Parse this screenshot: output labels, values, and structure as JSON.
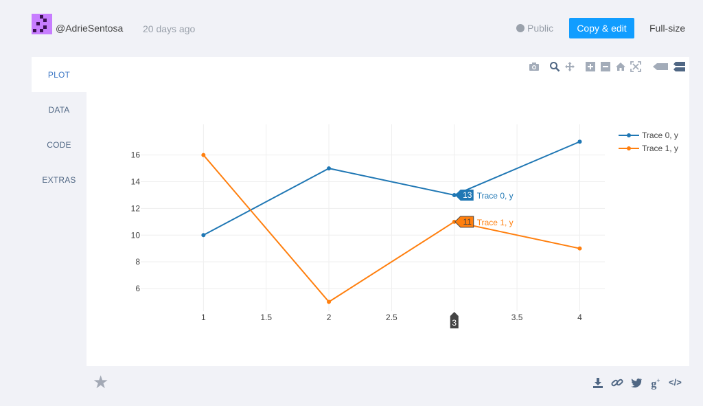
{
  "header": {
    "username": "@AdrieSentosa",
    "time_ago": "20 days ago",
    "visibility": "Public",
    "copy_edit_label": "Copy & edit",
    "fullsize_label": "Full-size"
  },
  "tabs": [
    {
      "label": "PLOT",
      "active": true
    },
    {
      "label": "DATA",
      "active": false
    },
    {
      "label": "CODE",
      "active": false
    },
    {
      "label": "EXTRAS",
      "active": false
    }
  ],
  "modebar": [
    "camera-icon",
    "zoom-icon",
    "pan-icon",
    "zoom-in-icon",
    "zoom-out-icon",
    "home-icon",
    "autoscale-icon",
    "hover-closest-icon",
    "hover-compare-icon"
  ],
  "footer_icons": [
    "star-icon",
    "download-icon",
    "link-icon",
    "twitter-icon",
    "google-plus-icon",
    "embed-icon"
  ],
  "chart_data": {
    "type": "line",
    "x": [
      1,
      2,
      3,
      4
    ],
    "xlim": [
      0.5,
      4.2
    ],
    "ylim": [
      4.3,
      18.3
    ],
    "xticks": [
      "1",
      "1.5",
      "2",
      "2.5",
      "3",
      "3.5",
      "4"
    ],
    "yticks": [
      "6",
      "8",
      "10",
      "12",
      "14",
      "16"
    ],
    "grid": true,
    "legend_position": "top-right",
    "series": [
      {
        "name": "Trace 0, y",
        "values": [
          10,
          15,
          13,
          17
        ],
        "color": "#1f77b4"
      },
      {
        "name": "Trace 1, y",
        "values": [
          16,
          5,
          11,
          9
        ],
        "color": "#ff7f0e"
      }
    ],
    "hover": {
      "x_label": "3",
      "labels": [
        {
          "value": "13",
          "name": "Trace 0, y"
        },
        {
          "value": "11",
          "name": "Trace 1, y"
        }
      ]
    }
  }
}
